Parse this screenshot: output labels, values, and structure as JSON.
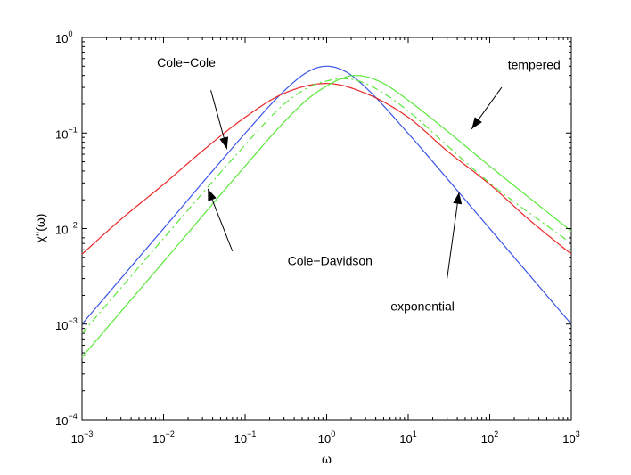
{
  "chart_data": {
    "type": "line",
    "title": "",
    "xlabel": "ω",
    "ylabel": "χ''(ω)",
    "xscale": "log",
    "yscale": "log",
    "xlim": [
      0.001,
      1000
    ],
    "ylim": [
      0.0001,
      1
    ],
    "x_ticks": [
      {
        "value": 0.001,
        "base": "10",
        "exp": "−3"
      },
      {
        "value": 0.01,
        "base": "10",
        "exp": "−2"
      },
      {
        "value": 0.1,
        "base": "10",
        "exp": "−1"
      },
      {
        "value": 1,
        "base": "10",
        "exp": "0"
      },
      {
        "value": 10,
        "base": "10",
        "exp": "1"
      },
      {
        "value": 100,
        "base": "10",
        "exp": "2"
      },
      {
        "value": 1000,
        "base": "10",
        "exp": "3"
      }
    ],
    "y_ticks": [
      {
        "value": 0.0001,
        "base": "10",
        "exp": "−4"
      },
      {
        "value": 0.001,
        "base": "10",
        "exp": "−3"
      },
      {
        "value": 0.01,
        "base": "10",
        "exp": "−2"
      },
      {
        "value": 0.1,
        "base": "10",
        "exp": "−1"
      },
      {
        "value": 1,
        "base": "10",
        "exp": "0"
      }
    ],
    "series": [
      {
        "name": "exponential",
        "color": "#3a55e8",
        "style": "solid",
        "x": [
          0.001,
          0.01,
          0.1,
          0.3,
          0.6,
          1,
          1.7,
          3,
          10,
          40,
          100,
          1000
        ],
        "y": [
          0.001,
          0.01,
          0.099,
          0.275,
          0.441,
          0.5,
          0.44,
          0.3,
          0.099,
          0.025,
          0.01,
          0.001
        ]
      },
      {
        "name": "Cole-Cole",
        "color": "#e82828",
        "style": "solid",
        "x": [
          0.001,
          0.003,
          0.01,
          0.03,
          0.1,
          0.3,
          1,
          3,
          10,
          30,
          100,
          300,
          1000
        ],
        "y": [
          0.0054,
          0.0125,
          0.029,
          0.065,
          0.146,
          0.26,
          0.33,
          0.26,
          0.146,
          0.065,
          0.029,
          0.0125,
          0.0054
        ]
      },
      {
        "name": "Cole-Davidson",
        "color": "#5ae83a",
        "style": "dashdot",
        "x": [
          0.001,
          0.01,
          0.1,
          0.3,
          0.6,
          1,
          1.5,
          2,
          3,
          5,
          10,
          30,
          100,
          1000
        ],
        "y": [
          0.0008,
          0.0079,
          0.075,
          0.2,
          0.3,
          0.35,
          0.37,
          0.366,
          0.33,
          0.26,
          0.17,
          0.074,
          0.03,
          0.007
        ]
      },
      {
        "name": "tempered",
        "color": "#5ae83a",
        "style": "solid",
        "x": [
          0.001,
          0.01,
          0.1,
          0.3,
          0.6,
          1,
          1.5,
          2.2,
          3,
          5,
          10,
          30,
          100,
          1000
        ],
        "y": [
          0.00045,
          0.0045,
          0.045,
          0.13,
          0.23,
          0.31,
          0.37,
          0.4,
          0.39,
          0.33,
          0.22,
          0.105,
          0.045,
          0.0094
        ]
      }
    ],
    "annotations": [
      {
        "text": "Cole−Cole",
        "series": "Cole-Cole",
        "text_at": [
          0.019,
          0.55
        ],
        "arrow_from": [
          0.038,
          0.28
        ],
        "arrow_to": [
          0.06,
          0.068
        ]
      },
      {
        "text": "tempered",
        "series": "tempered",
        "text_at": [
          350,
          0.52
        ],
        "arrow_from": [
          140,
          0.3
        ],
        "arrow_to": [
          60,
          0.11
        ]
      },
      {
        "text": "Cole−Davidson",
        "series": "Cole-Davidson",
        "text_at": [
          1.1,
          0.0046
        ],
        "arrow_from": [
          0.07,
          0.0058
        ],
        "arrow_to": [
          0.035,
          0.026
        ]
      },
      {
        "text": "exponential",
        "series": "exponential",
        "text_at": [
          15,
          0.00155
        ],
        "arrow_from": [
          30,
          0.003
        ],
        "arrow_to": [
          42,
          0.024
        ]
      }
    ]
  }
}
